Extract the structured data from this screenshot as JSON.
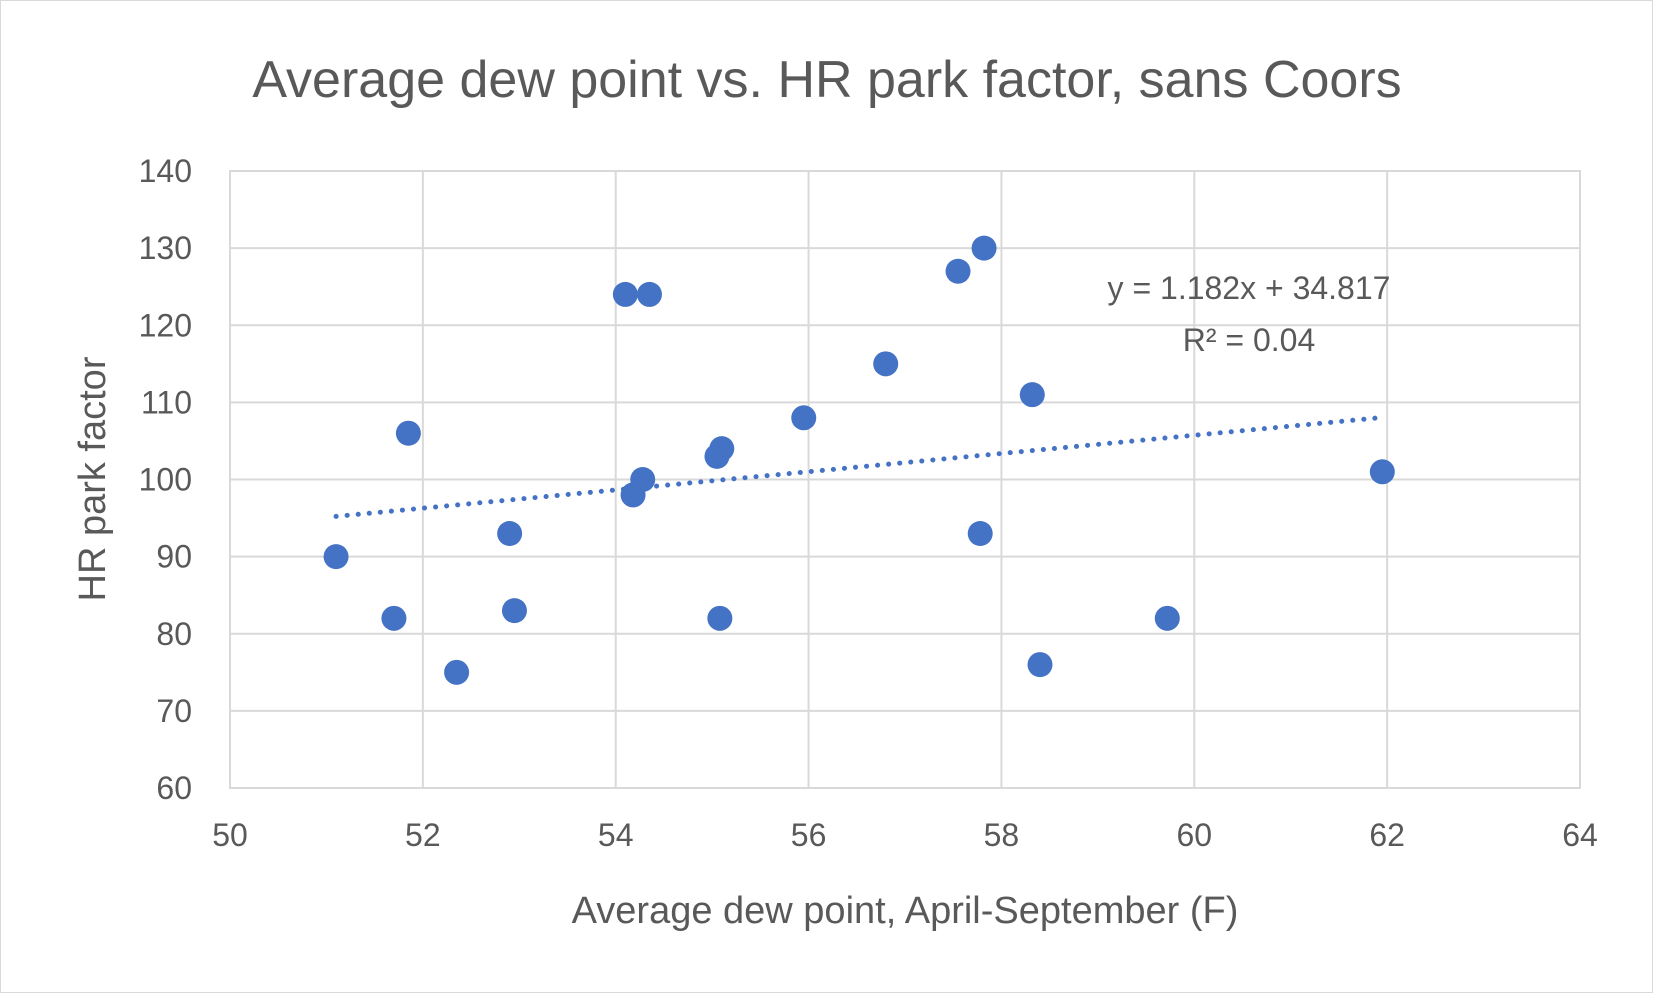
{
  "chart_data": {
    "type": "scatter",
    "title": "Average dew point vs. HR park factor, sans Coors",
    "xlabel": "Average dew point, April-September (F)",
    "ylabel": "HR park factor",
    "xlim": [
      50,
      64
    ],
    "ylim": [
      60,
      140
    ],
    "x_ticks": [
      50,
      52,
      54,
      56,
      58,
      60,
      62,
      64
    ],
    "y_ticks": [
      60,
      70,
      80,
      90,
      100,
      110,
      120,
      130,
      140
    ],
    "grid": true,
    "legend": "none",
    "marker_color": "#4472c4",
    "grid_color": "#d9d9d9",
    "text_color": "#595959",
    "points": [
      {
        "x": 51.1,
        "y": 90
      },
      {
        "x": 51.7,
        "y": 82
      },
      {
        "x": 51.85,
        "y": 106
      },
      {
        "x": 52.35,
        "y": 75
      },
      {
        "x": 52.9,
        "y": 93
      },
      {
        "x": 52.95,
        "y": 83
      },
      {
        "x": 54.1,
        "y": 124
      },
      {
        "x": 54.35,
        "y": 124
      },
      {
        "x": 54.18,
        "y": 98
      },
      {
        "x": 54.28,
        "y": 100
      },
      {
        "x": 55.05,
        "y": 103
      },
      {
        "x": 55.1,
        "y": 104
      },
      {
        "x": 55.08,
        "y": 82
      },
      {
        "x": 55.95,
        "y": 108
      },
      {
        "x": 56.8,
        "y": 115
      },
      {
        "x": 57.55,
        "y": 127
      },
      {
        "x": 57.82,
        "y": 130
      },
      {
        "x": 57.78,
        "y": 93
      },
      {
        "x": 58.32,
        "y": 111
      },
      {
        "x": 58.4,
        "y": 76
      },
      {
        "x": 59.72,
        "y": 82
      },
      {
        "x": 61.95,
        "y": 101
      }
    ],
    "trendline": {
      "style": "dotted",
      "slope": 1.182,
      "intercept": 34.817,
      "x_start": 51.1,
      "x_end": 61.95,
      "equation_label": "y = 1.182x + 34.817",
      "r2_label": "R² = 0.04"
    }
  }
}
